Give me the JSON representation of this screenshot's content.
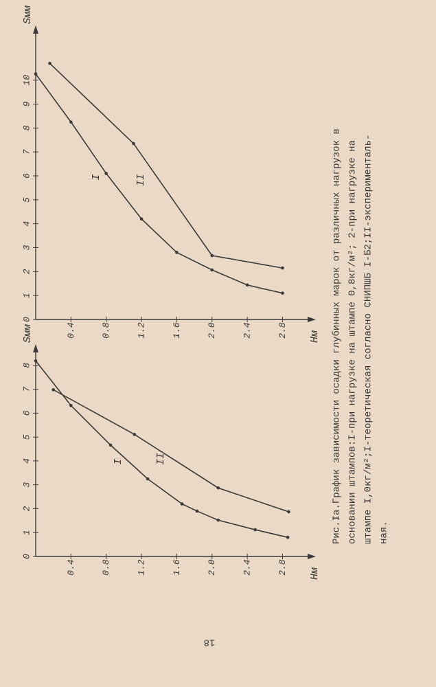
{
  "chart_data": [
    {
      "type": "line",
      "y_label": "Sмм",
      "x_label": "Hм",
      "xlim": [
        0,
        3.1
      ],
      "ylim": [
        0,
        12
      ],
      "xticks": [
        0.4,
        0.8,
        1.2,
        1.6,
        {
          "value": 2,
          "label": "2.0"
        },
        2.4,
        2.8
      ],
      "yticks": [
        0,
        1,
        2,
        3,
        4,
        5,
        6,
        7,
        8,
        9,
        10
      ],
      "series": [
        {
          "name": "I",
          "color": "#3c3a38",
          "x": [
            0,
            0.4,
            0.8,
            1.2,
            1.6,
            2.0,
            2.4,
            2.8
          ],
          "values": [
            10.26,
            8.25,
            6.1,
            4.2,
            2.8,
            2.07,
            1.44,
            1.1
          ]
        },
        {
          "name": "II",
          "color": "#3c3a38",
          "x": [
            0.16,
            1.11,
            2.0,
            2.8
          ],
          "values": [
            10.7,
            7.35,
            2.67,
            2.15
          ]
        }
      ]
    },
    {
      "type": "line",
      "y_label": "Sмм",
      "x_label": "Hм",
      "xlim": [
        0,
        3.1
      ],
      "ylim": [
        0,
        8.6
      ],
      "xticks": [
        0.4,
        0.8,
        1.2,
        1.6,
        {
          "value": 2,
          "label": "2.0"
        },
        2.4,
        2.8
      ],
      "yticks": [
        0,
        1,
        2,
        3,
        4,
        5,
        6,
        7,
        8
      ],
      "series": [
        {
          "name": "I",
          "color": "#3c3a38",
          "x": [
            0,
            0.4,
            0.85,
            1.27,
            1.66,
            1.83,
            2.07,
            2.49,
            2.86
          ],
          "values": [
            8.19,
            6.32,
            4.66,
            3.25,
            2.2,
            1.9,
            1.52,
            1.12,
            0.8
          ]
        },
        {
          "name": "II",
          "color": "#3c3a38",
          "x": [
            0.2,
            1.12,
            2.07,
            2.87
          ],
          "values": [
            6.98,
            5.11,
            2.87,
            1.87
          ]
        }
      ]
    }
  ],
  "caption": [
    "Рис.Iа.График зависимости осадки глубинных марок от различных нагрузок в",
    "основании штампов:I-при нагрузке на штампе 0,8кг/м²; 2-при нагрузке на",
    "штампе I,0кг/м²;I-теоретическая согласно СНИПШБ I-Б2;II-эксперименталь-",
    "ная."
  ],
  "page_number": "18"
}
